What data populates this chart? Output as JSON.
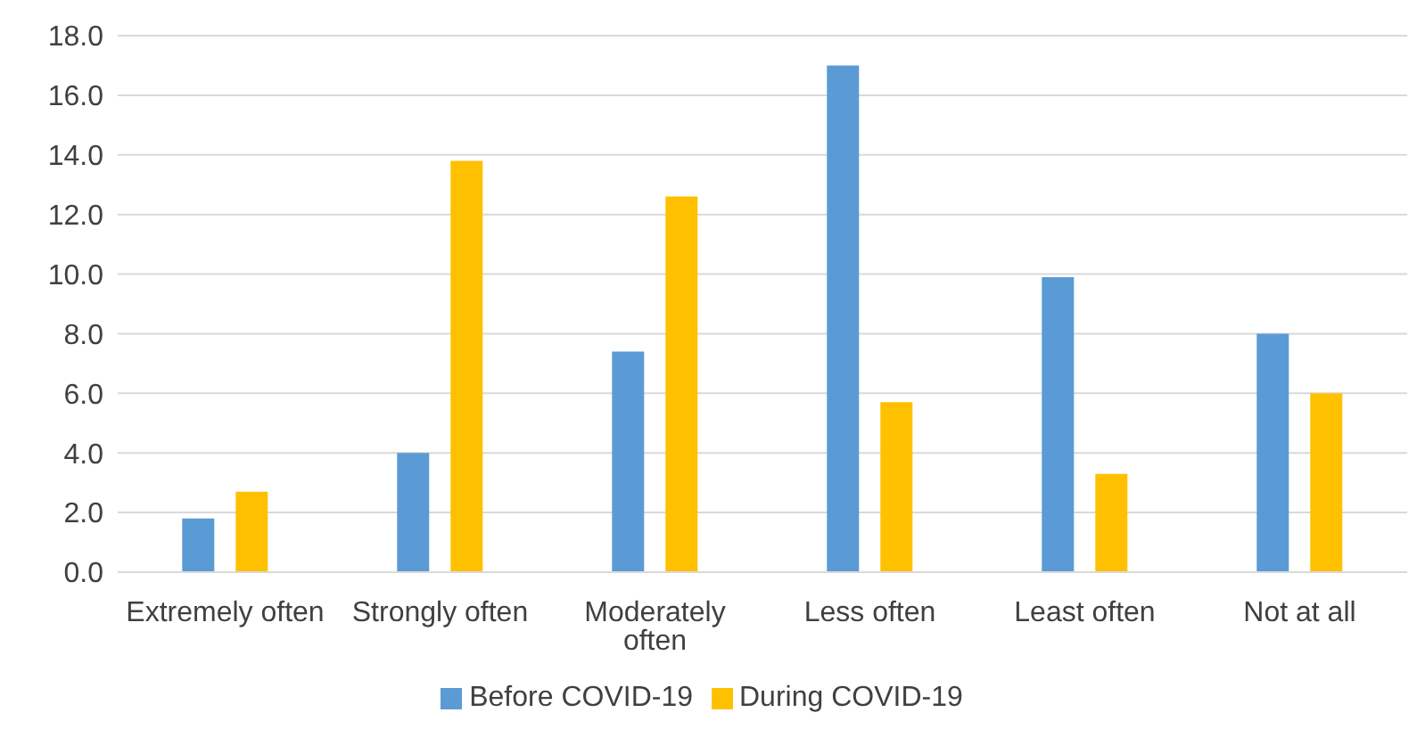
{
  "chart_data": {
    "type": "bar",
    "categories": [
      "Extremely often",
      "Strongly often",
      "Moderately often",
      "Less often",
      "Least often",
      "Not at all"
    ],
    "series": [
      {
        "name": "Before COVID-19",
        "color": "#5b9bd5",
        "values": [
          1.8,
          4.0,
          7.4,
          17.0,
          9.9,
          8.0
        ]
      },
      {
        "name": "During COVID-19",
        "color": "#ffc000",
        "values": [
          2.7,
          13.8,
          12.6,
          5.7,
          3.3,
          6.0
        ]
      }
    ],
    "ylim": [
      0,
      18
    ],
    "yticks": [
      {
        "value": 0,
        "label": "0.0"
      },
      {
        "value": 2,
        "label": "2.0"
      },
      {
        "value": 4,
        "label": "4.0"
      },
      {
        "value": 6,
        "label": "6.0"
      },
      {
        "value": 8,
        "label": "8.0"
      },
      {
        "value": 10,
        "label": "10.0"
      },
      {
        "value": 12,
        "label": "12.0"
      },
      {
        "value": 14,
        "label": "14.0"
      },
      {
        "value": 16,
        "label": "16.0"
      },
      {
        "value": 18,
        "label": "18.0"
      }
    ],
    "grid": "y",
    "legend": "bottom"
  }
}
